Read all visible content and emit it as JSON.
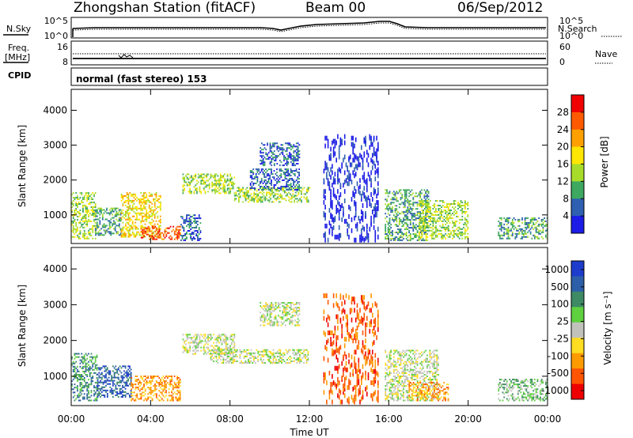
{
  "header": {
    "station": "Zhongshan Station (fitACF)",
    "beam": "Beam 00",
    "date": "06/Sep/2012"
  },
  "top_panels": {
    "nsky_label": "N.Sky",
    "nsearch_label": "N.Search",
    "freq_label_1": "Freq.",
    "freq_label_2": "[MHz]",
    "nave_label": "Nave",
    "cpid_label": "CPID",
    "cpid_text": "normal (fast stereo) 153",
    "noise_ticks": [
      "10^5",
      "10^0"
    ],
    "freq_ticks": [
      "16",
      "8"
    ],
    "nave_ticks": [
      "60",
      "0"
    ]
  },
  "axes": {
    "ylabel": "Slant Range [km]",
    "xlabel": "Time UT",
    "y_ticks": [
      "4000",
      "3000",
      "2000",
      "1000"
    ],
    "x_ticks": [
      "00:00",
      "04:00",
      "08:00",
      "12:00",
      "16:00",
      "20:00",
      "00:00"
    ]
  },
  "chart_data": [
    {
      "type": "heatmap",
      "panel": "power",
      "xlabel": "Time UT",
      "ylabel": "Slant Range [km]",
      "xlim": [
        0,
        24
      ],
      "ylim": [
        180,
        4600
      ],
      "colorbar": {
        "label": "Power [dB]",
        "ticks": [
          "28",
          "24",
          "20",
          "16",
          "12",
          "8",
          "4"
        ],
        "colors": [
          "#f00000",
          "#ff5a00",
          "#ffa000",
          "#ffe600",
          "#a8dc2a",
          "#3ea860",
          "#2e5fb0",
          "#1c1ce6"
        ]
      },
      "regions": [
        {
          "t": [
            0.0,
            1.2
          ],
          "r": [
            300,
            1650
          ],
          "level": 3
        },
        {
          "t": [
            1.2,
            2.5
          ],
          "r": [
            400,
            1200
          ],
          "level": 2
        },
        {
          "t": [
            2.5,
            4.5
          ],
          "r": [
            350,
            1650
          ],
          "level": 4
        },
        {
          "t": [
            3.5,
            5.5
          ],
          "r": [
            280,
            650
          ],
          "level": 6
        },
        {
          "t": [
            5.5,
            6.5
          ],
          "r": [
            250,
            1000
          ],
          "level": 1
        },
        {
          "t": [
            5.6,
            8.2
          ],
          "r": [
            1600,
            2150
          ],
          "level": 3
        },
        {
          "t": [
            8.2,
            12.0
          ],
          "r": [
            1350,
            1800
          ],
          "level": 3
        },
        {
          "t": [
            9.0,
            11.5
          ],
          "r": [
            1700,
            2300
          ],
          "level": 1
        },
        {
          "t": [
            9.5,
            11.5
          ],
          "r": [
            2400,
            3050
          ],
          "level": 1
        },
        {
          "t": [
            12.7,
            15.5
          ],
          "r": [
            300,
            3300
          ],
          "level": 0
        },
        {
          "t": [
            15.8,
            18.0
          ],
          "r": [
            250,
            1700
          ],
          "level": 2
        },
        {
          "t": [
            17.5,
            20.0
          ],
          "r": [
            300,
            1400
          ],
          "level": 3
        },
        {
          "t": [
            21.5,
            24.0
          ],
          "r": [
            300,
            900
          ],
          "level": 2
        }
      ]
    },
    {
      "type": "heatmap",
      "panel": "velocity",
      "xlabel": "Time UT",
      "ylabel": "Slant Range [km]",
      "xlim": [
        0,
        24
      ],
      "ylim": [
        180,
        4600
      ],
      "colorbar": {
        "label": "Velocity [m s⁻¹]",
        "ticks": [
          "1000",
          "500",
          "100",
          "25",
          "-25",
          "-100",
          "-500",
          "-1000"
        ],
        "colors": [
          "#1e3ccc",
          "#2d5fa8",
          "#3d8a64",
          "#5fd040",
          "#c2c2bc",
          "#ffdd22",
          "#ff9a00",
          "#ff5500",
          "#ee0000"
        ]
      },
      "regions": [
        {
          "t": [
            0.0,
            1.3
          ],
          "r": [
            300,
            1650
          ],
          "level": 2
        },
        {
          "t": [
            1.3,
            3.0
          ],
          "r": [
            400,
            1300
          ],
          "level": 1
        },
        {
          "t": [
            3.0,
            5.5
          ],
          "r": [
            300,
            1000
          ],
          "level": 6
        },
        {
          "t": [
            5.6,
            8.2
          ],
          "r": [
            1600,
            2150
          ],
          "level": 4
        },
        {
          "t": [
            7.0,
            12.0
          ],
          "r": [
            1350,
            1750
          ],
          "level": 4
        },
        {
          "t": [
            9.5,
            11.5
          ],
          "r": [
            2400,
            3050
          ],
          "level": 4
        },
        {
          "t": [
            12.7,
            15.5
          ],
          "r": [
            300,
            3300
          ],
          "level": 8
        },
        {
          "t": [
            15.8,
            18.5
          ],
          "r": [
            300,
            1700
          ],
          "level": 4
        },
        {
          "t": [
            17.0,
            19.0
          ],
          "r": [
            300,
            800
          ],
          "level": 6
        },
        {
          "t": [
            21.5,
            24.0
          ],
          "r": [
            300,
            900
          ],
          "level": 3
        }
      ]
    }
  ]
}
